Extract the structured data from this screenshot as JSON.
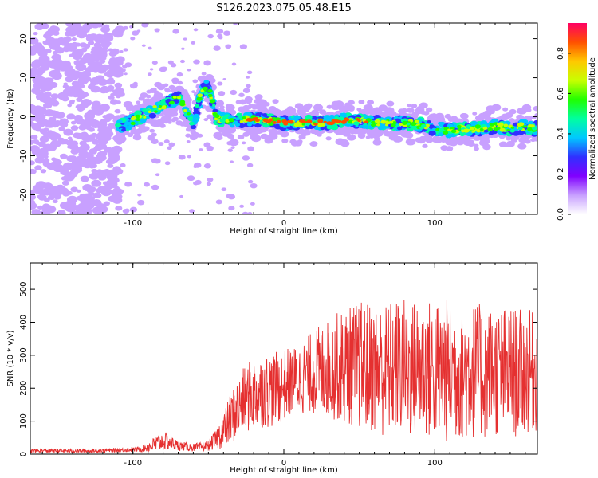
{
  "title": "S126.2023.075.05.48.E15",
  "chart_data": [
    {
      "type": "heatmap",
      "xlabel": "Height of straight line (km)",
      "ylabel": "Frequency (Hz)",
      "xlim": [
        -168,
        168
      ],
      "ylim": [
        -25,
        24
      ],
      "xticks": [
        "-100",
        "0",
        "100"
      ],
      "xtick_values": [
        -100,
        0,
        100
      ],
      "yticks": [
        "-20",
        "-10",
        "0",
        "10",
        "20"
      ],
      "ytick_values": [
        -20,
        -10,
        0,
        10,
        20
      ],
      "colorbar": {
        "label": "Normalized spectral amplitude",
        "range": [
          0,
          0.95
        ],
        "ticks": [
          "0.0",
          "0.2",
          "0.4",
          "0.6",
          "0.8"
        ],
        "tick_values": [
          0,
          0.2,
          0.4,
          0.6,
          0.8
        ],
        "colors": [
          "#ffffff",
          "#c8a0ff",
          "#8000ff",
          "#3030ff",
          "#00c8ff",
          "#00ffa0",
          "#20ff00",
          "#c8ff00",
          "#ffc800",
          "#ff5000",
          "#ff0064"
        ]
      },
      "trace": {
        "x": [
          -110,
          -100,
          -90,
          -80,
          -70,
          -60,
          -55,
          -50,
          -45,
          -40,
          -30,
          -20,
          -10,
          0,
          10,
          20,
          30,
          40,
          50,
          60,
          70,
          80,
          90,
          100,
          110,
          120,
          130,
          140,
          150,
          160,
          165
        ],
        "y": [
          -3,
          -1,
          1,
          3,
          5,
          -2,
          6,
          8,
          0,
          -1,
          -1,
          -0.5,
          -1,
          -1.5,
          -1.5,
          -1.5,
          -1.5,
          -1,
          -1,
          -1.5,
          -1.5,
          -1.5,
          -2,
          -3,
          -3.5,
          -3,
          -3,
          -2.5,
          -3,
          -2.5,
          -3
        ]
      }
    },
    {
      "type": "line",
      "xlabel": "Height of straight line (km)",
      "ylabel": "SNR (10 * v/v)",
      "xlim": [
        -168,
        168
      ],
      "ylim": [
        0,
        580
      ],
      "xticks": [
        "-100",
        "0",
        "100"
      ],
      "xtick_values": [
        -100,
        0,
        100
      ],
      "yticks": [
        "0",
        "100",
        "200",
        "300",
        "400",
        "500"
      ],
      "ytick_values": [
        0,
        100,
        200,
        300,
        400,
        500
      ],
      "series": [
        {
          "color": "#e53030",
          "x": [
            -168,
            -150,
            -130,
            -110,
            -95,
            -85,
            -80,
            -75,
            -70,
            -60,
            -50,
            -45,
            -40,
            -35,
            -30,
            -25,
            -20,
            -15,
            -10,
            -5,
            0,
            5,
            10,
            15,
            20,
            25,
            30,
            35,
            40,
            45,
            50,
            55,
            60,
            65,
            70,
            75,
            80,
            85,
            90,
            95,
            100,
            105,
            110,
            115,
            120,
            125,
            130,
            135,
            140,
            145,
            150,
            155,
            160,
            165,
            168
          ],
          "y": [
            10,
            10,
            10,
            12,
            15,
            30,
            40,
            35,
            25,
            20,
            25,
            45,
            70,
            110,
            140,
            170,
            180,
            190,
            195,
            195,
            210,
            220,
            225,
            240,
            250,
            255,
            260,
            265,
            265,
            270,
            270,
            265,
            260,
            255,
            260,
            265,
            260,
            255,
            260,
            255,
            255,
            250,
            255,
            250,
            250,
            255,
            250,
            245,
            250,
            250,
            250,
            245,
            250,
            250,
            245
          ],
          "amp": [
            6,
            6,
            6,
            6,
            8,
            25,
            30,
            22,
            15,
            12,
            15,
            30,
            55,
            80,
            95,
            105,
            110,
            110,
            115,
            115,
            110,
            105,
            110,
            115,
            130,
            140,
            150,
            165,
            175,
            185,
            195,
            200,
            200,
            205,
            205,
            210,
            215,
            215,
            215,
            215,
            215,
            220,
            220,
            215,
            210,
            210,
            205,
            205,
            200,
            200,
            200,
            195,
            190,
            185,
            180
          ]
        }
      ]
    }
  ]
}
